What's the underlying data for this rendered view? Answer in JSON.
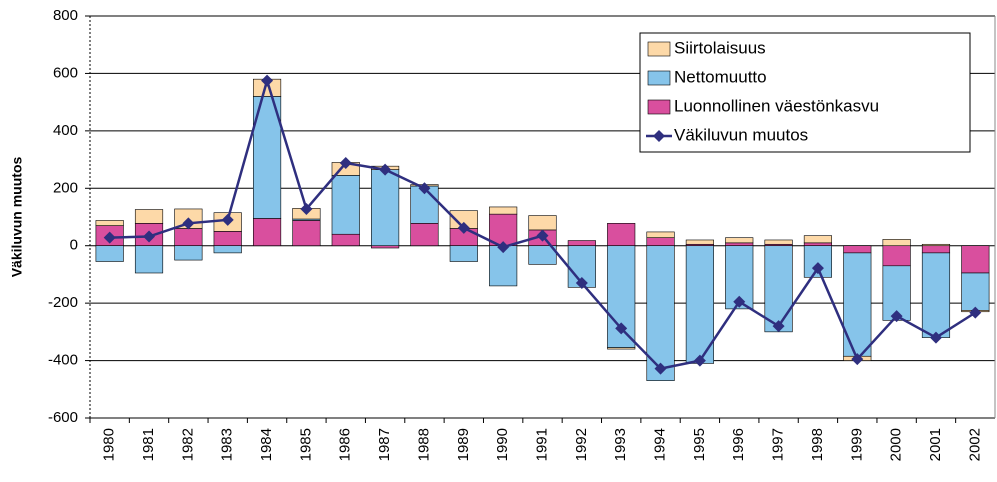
{
  "chart_data": {
    "type": "bar",
    "y_label": "Väkiluvun muutos",
    "categories": [
      "1980",
      "1981",
      "1982",
      "1983",
      "1984",
      "1985",
      "1986",
      "1987",
      "1988",
      "1989",
      "1990",
      "1991",
      "1992",
      "1993",
      "1994",
      "1995",
      "1996",
      "1997",
      "1998",
      "1999",
      "2000",
      "2001",
      "2002"
    ],
    "series": [
      {
        "name": "Luonnollinen väestönkasvu",
        "color": "#d94f9e",
        "values": [
          70,
          78,
          60,
          50,
          95,
          88,
          40,
          -8,
          78,
          60,
          110,
          55,
          18,
          78,
          28,
          5,
          10,
          5,
          10,
          -25,
          -70,
          -25,
          -95
        ]
      },
      {
        "name": "Nettomuutto",
        "color": "#86c4ea",
        "values": [
          -55,
          -95,
          -50,
          -25,
          425,
          5,
          205,
          265,
          130,
          -55,
          -140,
          -65,
          -145,
          -355,
          -470,
          -410,
          -220,
          -300,
          -110,
          -360,
          -190,
          -295,
          -130
        ]
      },
      {
        "name": "Siirtolaisuus",
        "color": "#fdd9a8",
        "values": [
          18,
          48,
          68,
          65,
          60,
          37,
          45,
          12,
          5,
          62,
          25,
          50,
          0,
          -5,
          20,
          15,
          18,
          15,
          25,
          -15,
          22,
          5,
          -5
        ]
      },
      {
        "name": "Väkiluvun muutos",
        "type": "line",
        "color": "#2f2f7f",
        "values": [
          28,
          32,
          78,
          90,
          575,
          128,
          288,
          265,
          200,
          62,
          -5,
          35,
          -130,
          -288,
          -428,
          -400,
          -195,
          -280,
          -78,
          -395,
          -245,
          -320,
          -233
        ]
      }
    ],
    "legend_order": [
      2,
      1,
      0,
      3
    ],
    "ylim": [
      -600,
      800
    ],
    "yticks": [
      -600,
      -400,
      -200,
      0,
      200,
      400,
      600,
      800
    ],
    "grid": true
  }
}
